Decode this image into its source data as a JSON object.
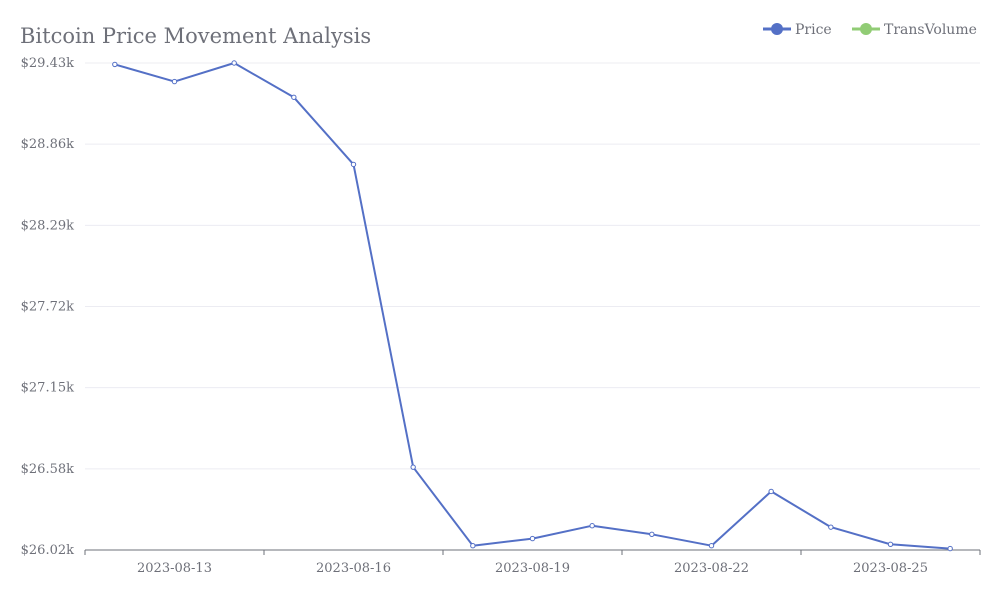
{
  "chart_data": {
    "type": "line",
    "title": "Bitcoin Price Movement Analysis",
    "xlabel": "",
    "ylabel": "",
    "x": [
      "2023-08-12",
      "2023-08-13",
      "2023-08-14",
      "2023-08-15",
      "2023-08-16",
      "2023-08-17",
      "2023-08-18",
      "2023-08-19",
      "2023-08-20",
      "2023-08-21",
      "2023-08-22",
      "2023-08-23",
      "2023-08-24",
      "2023-08-25",
      "2023-08-26"
    ],
    "x_tick_labels": [
      "2023-08-13",
      "2023-08-16",
      "2023-08-19",
      "2023-08-22",
      "2023-08-25"
    ],
    "y_tick_labels": [
      "$26.02k",
      "$26.58k",
      "$27.15k",
      "$27.72k",
      "$28.29k",
      "$28.86k",
      "$29.43k"
    ],
    "ylim": [
      26020,
      29430
    ],
    "series": [
      {
        "name": "Price",
        "color": "#5470c6",
        "values": [
          29420,
          29300,
          29430,
          29190,
          28720,
          26600,
          26050,
          26100,
          26190,
          26130,
          26050,
          26430,
          26180,
          26060,
          26030
        ]
      }
    ],
    "legend": {
      "position": "top-right",
      "items": [
        {
          "name": "Price",
          "color": "#5470c6"
        },
        {
          "name": "TransVolume",
          "color": "#91cc75"
        }
      ]
    },
    "grid": true
  }
}
